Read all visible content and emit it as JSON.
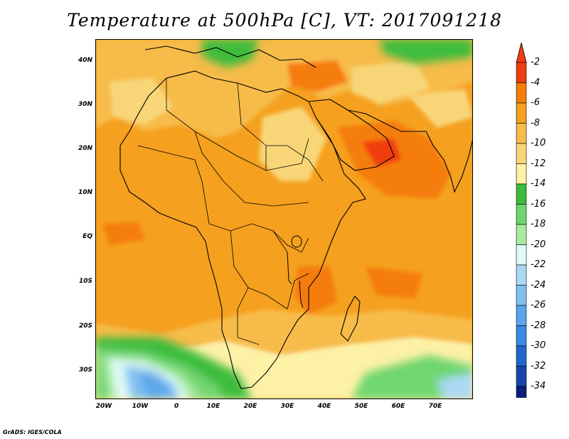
{
  "title": "Temperature at 500hPa [C], VT: 2017091218",
  "footer": "GrADS: IGES/COLA",
  "lat_labels": [
    "40N",
    "30N",
    "20N",
    "10N",
    "EQ",
    "10S",
    "20S",
    "30S"
  ],
  "lon_labels": [
    "20W",
    "10W",
    "0",
    "10E",
    "20E",
    "30E",
    "40E",
    "50E",
    "60E",
    "70E"
  ],
  "colorbar": {
    "labels": [
      "-2",
      "-4",
      "-6",
      "-8",
      "-10",
      "-12",
      "-14",
      "-16",
      "-18",
      "-20",
      "-22",
      "-24",
      "-26",
      "-28",
      "-30",
      "-32",
      "-34"
    ],
    "colors": [
      "#f03c10",
      "#f57d0a",
      "#f5a01e",
      "#f7bb4a",
      "#f8d678",
      "#fdf1a6",
      "#3cbc3c",
      "#6fd66f",
      "#a8eaa0",
      "#e0faf8",
      "#aad8f5",
      "#82c0f0",
      "#5aa5ea",
      "#3a8ae0",
      "#2066cc",
      "#1446a8",
      "#0c1e7a"
    ],
    "top_color": "#f03c10",
    "bottom_color": "#e5e5fa"
  },
  "colors": {
    "base_field": "#f5a01e",
    "coastline": "#000000"
  }
}
